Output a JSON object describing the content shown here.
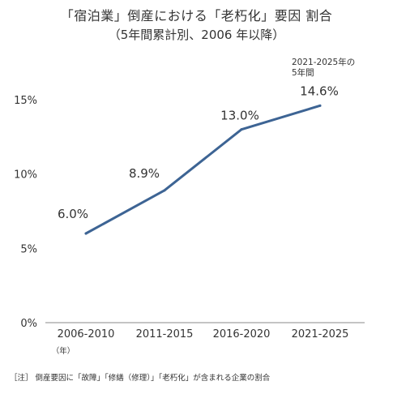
{
  "chart_data": {
    "type": "line",
    "title": "「宿泊業」倒産における「老朽化」要因 割合",
    "subtitle": "（5年間累計別、2006 年以降）",
    "categories": [
      "2006-2010",
      "2011-2015",
      "2016-2020",
      "2021-2025"
    ],
    "series": [
      {
        "name": "",
        "values": [
          6.0,
          8.9,
          13.0,
          14.6
        ],
        "color": "#3d6494"
      }
    ],
    "data_labels": [
      "6.0%",
      "8.9%",
      "13.0%",
      "14.6%"
    ],
    "x_unit": "（年）",
    "yticks": [
      "0%",
      "5%",
      "10%",
      "15%"
    ],
    "ylim": [
      0,
      15
    ],
    "annotation": [
      "2021-2025年の",
      "5年間"
    ],
    "footnote": "［注］ 倒産要因に「故障」「修繕（修理）」「老朽化」が含まれる企業の割合",
    "grid": false,
    "legend": "none"
  }
}
